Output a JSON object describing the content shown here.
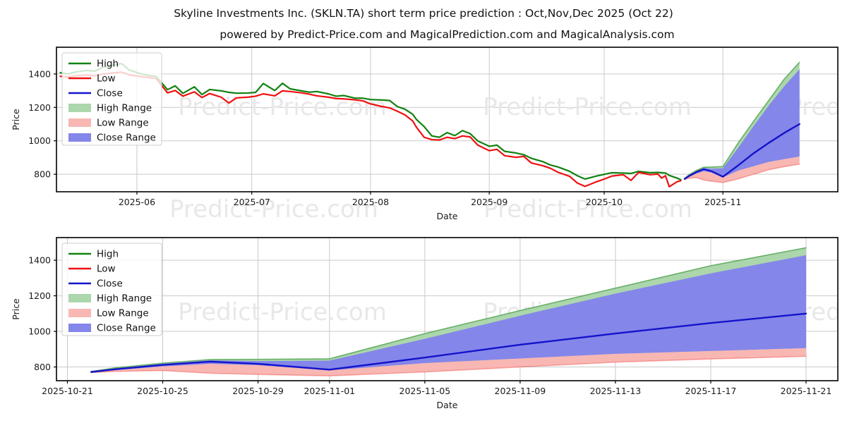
{
  "header": {
    "title": "Skyline Investments Inc. (SKLN.TA) short term price prediction : Oct,Nov,Dec 2025 (Oct 22)",
    "subtitle": "powered by Predict-Price.com and MagicalPrediction.com and MagicalAnalysis.com"
  },
  "watermark": {
    "text": "Predict-Price.com",
    "color": "#e8e8e8"
  },
  "colors": {
    "high": "#128212",
    "low": "#ee1111",
    "close": "#1313cb",
    "high_range": "#acd6ac",
    "low_range": "#f8b7b2",
    "close_range": "#8486e9",
    "grid": "#c9c9c9",
    "spine": "#000000",
    "tick_text": "#1a1a1a"
  },
  "legend": {
    "items": [
      {
        "label": "High",
        "swatch": "line",
        "color_key": "high"
      },
      {
        "label": "Low",
        "swatch": "line",
        "color_key": "low"
      },
      {
        "label": "Close",
        "swatch": "line",
        "color_key": "close"
      },
      {
        "label": "High Range",
        "swatch": "patch",
        "color_key": "high_range"
      },
      {
        "label": "Low Range",
        "swatch": "patch",
        "color_key": "low_range"
      },
      {
        "label": "Close Range",
        "swatch": "patch",
        "color_key": "close_range"
      }
    ]
  },
  "chart_data": [
    {
      "type": "line",
      "name": "full-history-with-forecast",
      "xlabel": "Date",
      "ylabel": "Price",
      "x_domain": [
        "2025-05-11",
        "2025-12-01"
      ],
      "y_domain": [
        695,
        1560
      ],
      "y_ticks": [
        {
          "v": 800,
          "label": "800"
        },
        {
          "v": 1000,
          "label": "1000"
        },
        {
          "v": 1200,
          "label": "1200"
        },
        {
          "v": 1400,
          "label": "1400"
        }
      ],
      "x_ticks": [
        {
          "t": "2025-06-01",
          "label": "2025-06"
        },
        {
          "t": "2025-07-01",
          "label": "2025-07"
        },
        {
          "t": "2025-08-01",
          "label": "2025-08"
        },
        {
          "t": "2025-09-01",
          "label": "2025-09"
        },
        {
          "t": "2025-10-01",
          "label": "2025-10"
        },
        {
          "t": "2025-11-01",
          "label": "2025-11"
        }
      ],
      "history_columns": [
        "date",
        "high",
        "low"
      ],
      "history": [
        [
          "2025-05-12",
          1408,
          1386
        ],
        [
          "2025-05-14",
          1400,
          1382
        ],
        [
          "2025-05-16",
          1412,
          1390
        ],
        [
          "2025-05-19",
          1421,
          1393
        ],
        [
          "2025-05-21",
          1417,
          1389
        ],
        [
          "2025-05-23",
          1439,
          1399
        ],
        [
          "2025-05-26",
          1454,
          1407
        ],
        [
          "2025-05-28",
          1462,
          1411
        ],
        [
          "2025-05-30",
          1424,
          1395
        ],
        [
          "2025-06-02",
          1401,
          1385
        ],
        [
          "2025-06-04",
          1391,
          1379
        ],
        [
          "2025-06-06",
          1386,
          1373
        ],
        [
          "2025-06-09",
          1306,
          1287
        ],
        [
          "2025-06-11",
          1329,
          1301
        ],
        [
          "2025-06-13",
          1284,
          1267
        ],
        [
          "2025-06-16",
          1323,
          1293
        ],
        [
          "2025-06-18",
          1277,
          1259
        ],
        [
          "2025-06-20",
          1307,
          1283
        ],
        [
          "2025-06-23",
          1299,
          1261
        ],
        [
          "2025-06-25",
          1290,
          1226
        ],
        [
          "2025-06-27",
          1285,
          1257
        ],
        [
          "2025-06-30",
          1286,
          1261
        ],
        [
          "2025-07-02",
          1290,
          1267
        ],
        [
          "2025-07-04",
          1343,
          1281
        ],
        [
          "2025-07-07",
          1301,
          1269
        ],
        [
          "2025-07-09",
          1344,
          1299
        ],
        [
          "2025-07-11",
          1311,
          1295
        ],
        [
          "2025-07-14",
          1299,
          1287
        ],
        [
          "2025-07-16",
          1291,
          1279
        ],
        [
          "2025-07-18",
          1295,
          1269
        ],
        [
          "2025-07-21",
          1281,
          1261
        ],
        [
          "2025-07-23",
          1267,
          1253
        ],
        [
          "2025-07-25",
          1271,
          1251
        ],
        [
          "2025-07-28",
          1255,
          1245
        ],
        [
          "2025-07-30",
          1255,
          1239
        ],
        [
          "2025-08-01",
          1247,
          1221
        ],
        [
          "2025-08-04",
          1244,
          1205
        ],
        [
          "2025-08-06",
          1241,
          1197
        ],
        [
          "2025-08-08",
          1205,
          1177
        ],
        [
          "2025-08-10",
          1189,
          1155
        ],
        [
          "2025-08-12",
          1159,
          1119
        ],
        [
          "2025-08-13",
          1127,
          1081
        ],
        [
          "2025-08-15",
          1085,
          1021
        ],
        [
          "2025-08-17",
          1029,
          1007
        ],
        [
          "2025-08-19",
          1021,
          1005
        ],
        [
          "2025-08-21",
          1049,
          1021
        ],
        [
          "2025-08-23",
          1031,
          1013
        ],
        [
          "2025-08-25",
          1061,
          1029
        ],
        [
          "2025-08-27",
          1043,
          1023
        ],
        [
          "2025-08-29",
          999,
          974
        ],
        [
          "2025-09-01",
          967,
          941
        ],
        [
          "2025-09-03",
          974,
          949
        ],
        [
          "2025-09-05",
          937,
          911
        ],
        [
          "2025-09-08",
          927,
          901
        ],
        [
          "2025-09-10",
          917,
          907
        ],
        [
          "2025-09-12",
          895,
          867
        ],
        [
          "2025-09-15",
          875,
          851
        ],
        [
          "2025-09-17",
          855,
          835
        ],
        [
          "2025-09-19",
          843,
          811
        ],
        [
          "2025-09-22",
          817,
          787
        ],
        [
          "2025-09-24",
          791,
          747
        ],
        [
          "2025-09-26",
          771,
          727
        ],
        [
          "2025-09-29",
          789,
          755
        ],
        [
          "2025-10-01",
          799,
          771
        ],
        [
          "2025-10-03",
          809,
          789
        ],
        [
          "2025-10-06",
          807,
          797
        ],
        [
          "2025-10-08",
          805,
          763
        ],
        [
          "2025-10-10",
          817,
          811
        ],
        [
          "2025-10-13",
          809,
          797
        ],
        [
          "2025-10-15",
          811,
          801
        ],
        [
          "2025-10-16",
          809,
          777
        ],
        [
          "2025-10-17",
          807,
          791
        ],
        [
          "2025-10-18",
          793,
          725
        ],
        [
          "2025-10-20",
          777,
          755
        ],
        [
          "2025-10-21",
          767,
          761
        ]
      ],
      "forecast_columns": [
        "date",
        "close",
        "close_range_top",
        "close_range_bottom",
        "high_range_top",
        "low_range_bottom"
      ],
      "forecast": [
        [
          "2025-10-22",
          772,
          772,
          772,
          775,
          768
        ],
        [
          "2025-10-23",
          787,
          792,
          782,
          795,
          775
        ],
        [
          "2025-10-25",
          812,
          818,
          803,
          822,
          780
        ],
        [
          "2025-10-27",
          830,
          838,
          818,
          842,
          765
        ],
        [
          "2025-10-29",
          818,
          833,
          810,
          843,
          758
        ],
        [
          "2025-11-01",
          785,
          836,
          781,
          846,
          750
        ],
        [
          "2025-11-05",
          853,
          958,
          822,
          988,
          772
        ],
        [
          "2025-11-09",
          925,
          1088,
          848,
          1117,
          800
        ],
        [
          "2025-11-13",
          988,
          1212,
          874,
          1243,
          827
        ],
        [
          "2025-11-17",
          1047,
          1326,
          890,
          1369,
          845
        ],
        [
          "2025-11-21",
          1100,
          1428,
          906,
          1470,
          860
        ]
      ]
    },
    {
      "type": "line",
      "name": "forecast-zoom",
      "xlabel": "Date",
      "ylabel": "Price",
      "x_domain": [
        "2025-10-20T13:00:00",
        "2025-11-22T08:00:00"
      ],
      "y_domain": [
        723,
        1527
      ],
      "y_ticks": [
        {
          "v": 800,
          "label": "800"
        },
        {
          "v": 1000,
          "label": "1000"
        },
        {
          "v": 1200,
          "label": "1200"
        },
        {
          "v": 1400,
          "label": "1400"
        }
      ],
      "x_ticks": [
        {
          "t": "2025-10-21",
          "label": "2025-10-21"
        },
        {
          "t": "2025-10-25",
          "label": "2025-10-25"
        },
        {
          "t": "2025-10-29",
          "label": "2025-10-29"
        },
        {
          "t": "2025-11-01",
          "label": "2025-11-01"
        },
        {
          "t": "2025-11-05",
          "label": "2025-11-05"
        },
        {
          "t": "2025-11-09",
          "label": "2025-11-09"
        },
        {
          "t": "2025-11-13",
          "label": "2025-11-13"
        },
        {
          "t": "2025-11-17",
          "label": "2025-11-17"
        },
        {
          "t": "2025-11-21",
          "label": "2025-11-21"
        }
      ],
      "history": [],
      "forecast_columns": [
        "date",
        "close",
        "close_range_top",
        "close_range_bottom",
        "high_range_top",
        "low_range_bottom"
      ],
      "forecast": [
        [
          "2025-10-22",
          772,
          772,
          772,
          775,
          768
        ],
        [
          "2025-10-23",
          787,
          792,
          782,
          795,
          775
        ],
        [
          "2025-10-25",
          812,
          818,
          803,
          822,
          780
        ],
        [
          "2025-10-27",
          830,
          838,
          818,
          842,
          765
        ],
        [
          "2025-10-29",
          818,
          833,
          810,
          843,
          758
        ],
        [
          "2025-11-01",
          785,
          836,
          781,
          846,
          750
        ],
        [
          "2025-11-05",
          853,
          958,
          822,
          988,
          772
        ],
        [
          "2025-11-09",
          925,
          1088,
          848,
          1117,
          800
        ],
        [
          "2025-11-13",
          988,
          1212,
          874,
          1243,
          827
        ],
        [
          "2025-11-17",
          1047,
          1326,
          890,
          1369,
          845
        ],
        [
          "2025-11-21",
          1100,
          1428,
          906,
          1470,
          860
        ]
      ]
    }
  ]
}
